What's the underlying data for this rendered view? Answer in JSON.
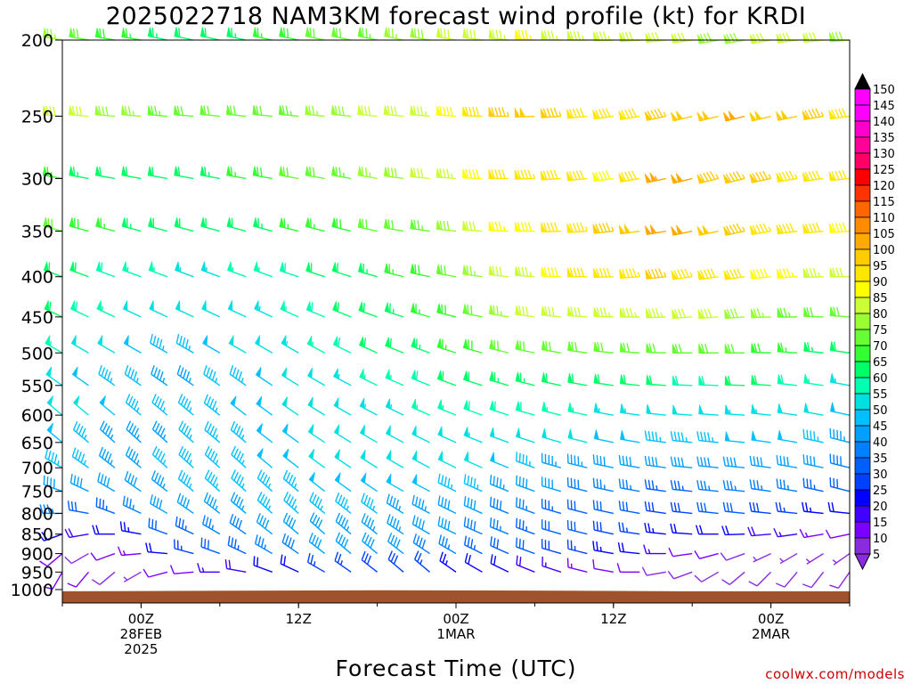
{
  "page": {
    "title": "2025022718 NAM3KM forecast wind profile (kt) for KRDI",
    "credit": "coolwx.com/models"
  },
  "colors": {
    "ground": "#a0522d",
    "frame": "#000000",
    "scale": [
      "#8a2be2",
      "#7a00ff",
      "#4000ff",
      "#0000ff",
      "#0040ff",
      "#0060ff",
      "#0080ff",
      "#00a0ff",
      "#00c0ff",
      "#00e0e0",
      "#00ffb0",
      "#00ff66",
      "#33ff33",
      "#66ff33",
      "#99ff33",
      "#ccff33",
      "#ffff00",
      "#ffe600",
      "#ffcc00",
      "#ffaa00",
      "#ff8c00",
      "#ff6600",
      "#ff3300",
      "#ff0000",
      "#ff0066",
      "#ff0099",
      "#ff00cc",
      "#ff00ff"
    ]
  },
  "chart_data": {
    "type": "wind-barb time-height section",
    "title": "2025022718 NAM3KM forecast wind profile (kt) for KRDI",
    "xlabel": "Forecast Time (UTC)",
    "ylabel": "",
    "x_ticks": [
      {
        "hour": 6,
        "lines": [
          "00Z",
          "28FEB",
          "2025"
        ]
      },
      {
        "hour": 18,
        "lines": [
          "12Z"
        ]
      },
      {
        "hour": 30,
        "lines": [
          "00Z",
          "1MAR"
        ]
      },
      {
        "hour": 42,
        "lines": [
          "12Z"
        ]
      },
      {
        "hour": 54,
        "lines": [
          "00Z",
          "2MAR"
        ]
      }
    ],
    "xlim": [
      0,
      60
    ],
    "y_ticks": [
      "200",
      "250",
      "300",
      "350",
      "400",
      "450",
      "500",
      "550",
      "600",
      "650",
      "700",
      "750",
      "800",
      "850",
      "900",
      "950",
      "1000"
    ],
    "ylim": [
      1040,
      200
    ],
    "y_scale": "log-pressure (hPa)",
    "colorbar": {
      "position": "right",
      "labels": [
        "150",
        "145",
        "140",
        "135",
        "130",
        "125",
        "120",
        "115",
        "110",
        "105",
        "100",
        "95",
        "90",
        "85",
        "80",
        "75",
        "70",
        "65",
        "60",
        "55",
        "50",
        "45",
        "40",
        "35",
        "30",
        "25",
        "20",
        "15",
        "10",
        "5"
      ]
    },
    "surface_pressure_hPa": [
      {
        "hour": 0,
        "p": 1005
      },
      {
        "hour": 16,
        "p": 1003
      },
      {
        "hour": 24,
        "p": 1002
      },
      {
        "hour": 36,
        "p": 1003
      },
      {
        "hour": 42,
        "p": 1004
      },
      {
        "hour": 48,
        "p": 1005
      },
      {
        "hour": 60,
        "p": 1005
      }
    ],
    "barbs": {
      "hours_start": 0,
      "hours_step": 2,
      "hours_count": 31,
      "levels": [
        200,
        250,
        300,
        350,
        400,
        450,
        500,
        550,
        600,
        650,
        700,
        750,
        800,
        850,
        900,
        950
      ],
      "note": "speed in kt; direction = degrees wind blows from; each row lists levels 200..950 hPa",
      "speed_kt": [
        [
          75,
          82,
          66,
          70,
          62,
          60,
          55,
          50,
          52,
          48,
          45,
          42,
          35,
          20,
          10,
          12
        ],
        [
          70,
          80,
          64,
          68,
          60,
          58,
          52,
          48,
          50,
          46,
          45,
          40,
          32,
          18,
          9,
          10
        ],
        [
          68,
          78,
          62,
          66,
          58,
          55,
          50,
          46,
          48,
          44,
          44,
          40,
          33,
          20,
          10,
          8
        ],
        [
          66,
          76,
          60,
          64,
          56,
          52,
          48,
          45,
          46,
          44,
          44,
          42,
          36,
          24,
          14,
          6
        ],
        [
          64,
          74,
          60,
          62,
          55,
          50,
          46,
          44,
          46,
          44,
          45,
          43,
          40,
          30,
          20,
          10
        ],
        [
          62,
          72,
          62,
          62,
          54,
          50,
          46,
          44,
          46,
          45,
          46,
          45,
          42,
          34,
          26,
          12
        ],
        [
          62,
          70,
          64,
          62,
          54,
          50,
          48,
          45,
          46,
          46,
          46,
          45,
          44,
          36,
          30,
          15
        ],
        [
          64,
          70,
          66,
          62,
          55,
          52,
          50,
          46,
          48,
          47,
          46,
          46,
          44,
          38,
          34,
          18
        ],
        [
          66,
          72,
          68,
          64,
          56,
          54,
          52,
          48,
          48,
          48,
          48,
          46,
          45,
          40,
          36,
          20
        ],
        [
          68,
          74,
          70,
          65,
          58,
          56,
          54,
          50,
          50,
          48,
          48,
          47,
          46,
          42,
          38,
          22
        ],
        [
          70,
          76,
          72,
          66,
          60,
          58,
          56,
          52,
          52,
          50,
          50,
          48,
          46,
          42,
          40,
          25
        ],
        [
          72,
          78,
          74,
          68,
          62,
          60,
          58,
          54,
          52,
          50,
          50,
          48,
          46,
          44,
          40,
          26
        ],
        [
          74,
          80,
          76,
          70,
          64,
          62,
          60,
          55,
          54,
          52,
          50,
          48,
          46,
          44,
          40,
          28
        ],
        [
          76,
          82,
          78,
          72,
          66,
          64,
          62,
          56,
          54,
          52,
          50,
          48,
          44,
          44,
          40,
          28
        ],
        [
          78,
          84,
          80,
          74,
          68,
          66,
          64,
          58,
          55,
          52,
          50,
          48,
          44,
          42,
          38,
          26
        ],
        [
          80,
          88,
          84,
          78,
          72,
          68,
          66,
          60,
          56,
          52,
          50,
          46,
          42,
          40,
          36,
          24
        ],
        [
          82,
          92,
          88,
          82,
          76,
          72,
          68,
          62,
          58,
          54,
          50,
          46,
          40,
          38,
          34,
          22
        ],
        [
          84,
          96,
          92,
          86,
          80,
          76,
          70,
          64,
          58,
          52,
          48,
          44,
          38,
          36,
          32,
          20
        ],
        [
          86,
          98,
          94,
          88,
          84,
          80,
          72,
          64,
          58,
          52,
          46,
          42,
          36,
          34,
          30,
          18
        ],
        [
          84,
          96,
          92,
          92,
          88,
          82,
          72,
          62,
          56,
          50,
          44,
          40,
          34,
          32,
          28,
          16
        ],
        [
          84,
          92,
          90,
          94,
          90,
          82,
          72,
          60,
          55,
          50,
          44,
          38,
          32,
          30,
          26,
          14
        ],
        [
          84,
          90,
          88,
          96,
          92,
          84,
          72,
          60,
          54,
          48,
          42,
          36,
          30,
          28,
          24,
          12
        ],
        [
          82,
          92,
          90,
          98,
          94,
          84,
          72,
          60,
          54,
          48,
          42,
          36,
          30,
          26,
          20,
          10
        ],
        [
          80,
          96,
          104,
          102,
          96,
          84,
          72,
          60,
          52,
          46,
          40,
          34,
          28,
          24,
          16,
          8
        ],
        [
          80,
          98,
          100,
          100,
          94,
          82,
          70,
          58,
          52,
          46,
          40,
          34,
          28,
          22,
          12,
          8
        ],
        [
          78,
          98,
          96,
          98,
          92,
          80,
          70,
          58,
          52,
          46,
          42,
          36,
          30,
          20,
          10,
          8
        ],
        [
          78,
          100,
          96,
          96,
          90,
          78,
          70,
          60,
          54,
          48,
          42,
          36,
          30,
          20,
          8,
          8
        ],
        [
          80,
          98,
          96,
          94,
          88,
          76,
          68,
          60,
          54,
          48,
          42,
          36,
          28,
          18,
          6,
          8
        ],
        [
          82,
          98,
          94,
          92,
          86,
          74,
          66,
          58,
          52,
          48,
          42,
          36,
          26,
          16,
          6,
          8
        ],
        [
          80,
          96,
          92,
          90,
          84,
          72,
          64,
          56,
          50,
          46,
          40,
          34,
          24,
          14,
          6,
          8
        ],
        [
          78,
          92,
          90,
          88,
          82,
          70,
          62,
          54,
          48,
          44,
          38,
          32,
          22,
          12,
          6,
          8
        ]
      ],
      "direction_deg": [
        [
          280,
          275,
          280,
          285,
          290,
          295,
          300,
          305,
          310,
          310,
          300,
          290,
          270,
          250,
          230,
          210
        ],
        [
          280,
          275,
          280,
          285,
          290,
          295,
          300,
          305,
          310,
          310,
          305,
          295,
          280,
          260,
          240,
          220
        ],
        [
          280,
          275,
          280,
          285,
          290,
          295,
          300,
          305,
          310,
          312,
          308,
          300,
          290,
          270,
          250,
          230
        ],
        [
          280,
          275,
          280,
          285,
          290,
          295,
          300,
          305,
          310,
          312,
          310,
          305,
          295,
          280,
          265,
          240
        ],
        [
          282,
          275,
          280,
          285,
          290,
          295,
          300,
          305,
          310,
          312,
          312,
          308,
          300,
          290,
          275,
          255
        ],
        [
          282,
          275,
          280,
          285,
          290,
          295,
          300,
          305,
          310,
          312,
          312,
          310,
          305,
          295,
          285,
          265
        ],
        [
          282,
          276,
          280,
          285,
          290,
          295,
          300,
          305,
          308,
          310,
          312,
          312,
          308,
          300,
          290,
          270
        ],
        [
          282,
          276,
          280,
          285,
          290,
          295,
          300,
          305,
          308,
          310,
          312,
          312,
          310,
          305,
          295,
          280
        ],
        [
          282,
          276,
          280,
          285,
          290,
          295,
          300,
          304,
          306,
          308,
          310,
          312,
          312,
          308,
          300,
          290
        ],
        [
          282,
          276,
          280,
          284,
          288,
          294,
          300,
          302,
          304,
          306,
          308,
          310,
          312,
          310,
          305,
          295
        ],
        [
          282,
          276,
          280,
          284,
          288,
          292,
          298,
          300,
          302,
          304,
          306,
          308,
          310,
          312,
          308,
          300
        ],
        [
          282,
          276,
          280,
          284,
          288,
          292,
          296,
          298,
          300,
          302,
          304,
          306,
          308,
          310,
          310,
          305
        ],
        [
          282,
          276,
          280,
          282,
          286,
          290,
          294,
          296,
          298,
          300,
          302,
          304,
          306,
          308,
          310,
          308
        ],
        [
          282,
          276,
          278,
          280,
          284,
          288,
          292,
          294,
          296,
          298,
          300,
          300,
          302,
          304,
          308,
          310
        ],
        [
          280,
          275,
          276,
          278,
          282,
          286,
          290,
          292,
          294,
          296,
          298,
          298,
          298,
          300,
          304,
          310
        ],
        [
          280,
          274,
          274,
          276,
          280,
          284,
          288,
          290,
          292,
          294,
          296,
          296,
          296,
          296,
          300,
          305
        ],
        [
          278,
          272,
          272,
          274,
          278,
          282,
          286,
          288,
          290,
          292,
          294,
          294,
          294,
          294,
          296,
          300
        ],
        [
          276,
          270,
          270,
          272,
          276,
          280,
          284,
          286,
          288,
          290,
          292,
          292,
          292,
          292,
          294,
          296
        ],
        [
          274,
          268,
          268,
          270,
          274,
          278,
          282,
          284,
          286,
          288,
          290,
          290,
          290,
          290,
          290,
          292
        ],
        [
          272,
          266,
          266,
          268,
          272,
          276,
          280,
          282,
          284,
          286,
          286,
          286,
          286,
          286,
          286,
          288
        ],
        [
          270,
          264,
          264,
          266,
          270,
          274,
          278,
          280,
          282,
          284,
          284,
          284,
          284,
          284,
          284,
          284
        ],
        [
          268,
          262,
          262,
          264,
          268,
          272,
          276,
          278,
          280,
          282,
          282,
          282,
          282,
          282,
          280,
          280
        ],
        [
          266,
          260,
          260,
          262,
          266,
          270,
          274,
          276,
          278,
          280,
          280,
          280,
          280,
          278,
          276,
          270
        ],
        [
          264,
          258,
          258,
          260,
          264,
          268,
          272,
          274,
          276,
          278,
          278,
          278,
          278,
          276,
          270,
          260
        ],
        [
          262,
          256,
          256,
          258,
          262,
          266,
          270,
          272,
          274,
          276,
          276,
          276,
          276,
          274,
          262,
          250
        ],
        [
          260,
          256,
          256,
          258,
          262,
          266,
          270,
          272,
          274,
          276,
          276,
          276,
          276,
          270,
          255,
          240
        ],
        [
          260,
          256,
          256,
          258,
          262,
          266,
          270,
          272,
          274,
          276,
          276,
          276,
          276,
          268,
          250,
          230
        ],
        [
          260,
          256,
          258,
          260,
          264,
          268,
          272,
          274,
          276,
          278,
          278,
          278,
          276,
          265,
          245,
          225
        ],
        [
          262,
          258,
          260,
          262,
          266,
          270,
          274,
          276,
          278,
          280,
          280,
          280,
          276,
          262,
          240,
          220
        ],
        [
          264,
          260,
          262,
          264,
          268,
          272,
          276,
          278,
          280,
          282,
          282,
          282,
          276,
          260,
          238,
          218
        ],
        [
          266,
          262,
          264,
          266,
          270,
          274,
          278,
          280,
          282,
          284,
          284,
          284,
          276,
          258,
          235,
          215
        ]
      ]
    }
  }
}
